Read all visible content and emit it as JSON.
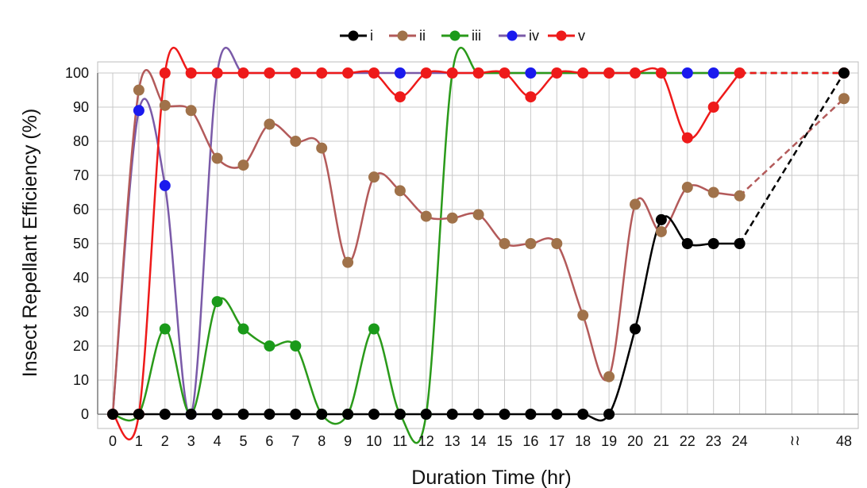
{
  "chart_data": {
    "type": "line",
    "title": "",
    "xlabel": "Duration Time (hr)",
    "ylabel": "Insect Repellant Efficiency (%)",
    "ylim": [
      0,
      100
    ],
    "yticks": [
      "0",
      "10",
      "20",
      "30",
      "40",
      "50",
      "60",
      "70",
      "80",
      "90",
      "100"
    ],
    "x": [
      "0",
      "1",
      "2",
      "3",
      "4",
      "5",
      "6",
      "7",
      "8",
      "9",
      "10",
      "11",
      "12",
      "13",
      "14",
      "15",
      "16",
      "17",
      "18",
      "19",
      "20",
      "21",
      "22",
      "23",
      "24",
      "48"
    ],
    "axis_break_symbol": "≀≀",
    "axis_break_between": [
      "24",
      "48"
    ],
    "grid": true,
    "legend_position": "top-center",
    "segment_24_to_48_style": "dashed",
    "series": [
      {
        "name": "i",
        "color": "#000000",
        "line_color": "#000000",
        "values": [
          0,
          0,
          0,
          0,
          0,
          0,
          0,
          0,
          0,
          0,
          0,
          0,
          0,
          0,
          0,
          0,
          0,
          0,
          0,
          0,
          25,
          57,
          50,
          50,
          50,
          100
        ]
      },
      {
        "name": "ii",
        "color": "#a0724a",
        "line_color": "#b35a5a",
        "values": [
          0,
          95,
          90.5,
          89,
          75,
          73,
          85,
          80,
          78,
          44.5,
          69.5,
          65.5,
          58,
          57.5,
          58.5,
          50,
          50,
          50,
          29,
          11,
          61.5,
          53.5,
          66.5,
          65,
          64,
          92.5
        ]
      },
      {
        "name": "iii",
        "color": "#1a9a1a",
        "line_color": "#2a9a1a",
        "values": [
          0,
          0,
          25,
          0,
          33,
          25,
          20,
          20,
          0,
          0,
          25,
          0,
          0,
          100,
          100,
          100,
          100,
          100,
          100,
          100,
          100,
          100,
          100,
          100,
          100,
          100
        ]
      },
      {
        "name": "iv",
        "color": "#1a1aee",
        "line_color": "#7a5aa8",
        "values": [
          0,
          89,
          67,
          0,
          100,
          100,
          100,
          100,
          100,
          100,
          100,
          100,
          100,
          100,
          100,
          100,
          100,
          100,
          100,
          100,
          100,
          100,
          100,
          100,
          100,
          100
        ]
      },
      {
        "name": "v",
        "color": "#ee1a1a",
        "line_color": "#ee1a1a",
        "values": [
          0,
          0,
          100,
          100,
          100,
          100,
          100,
          100,
          100,
          100,
          100,
          93,
          100,
          100,
          100,
          100,
          93,
          100,
          100,
          100,
          100,
          100,
          81,
          90,
          100,
          100
        ]
      }
    ],
    "drawn_markers": {
      "i": [
        0,
        1,
        2,
        3,
        4,
        5,
        6,
        7,
        8,
        9,
        10,
        11,
        12,
        13,
        14,
        15,
        16,
        17,
        18,
        19,
        20,
        21,
        22,
        23,
        24,
        25
      ],
      "ii": [
        1,
        2,
        3,
        4,
        5,
        6,
        7,
        8,
        9,
        10,
        11,
        12,
        13,
        14,
        15,
        16,
        17,
        18,
        19,
        20,
        21,
        22,
        23,
        24,
        25
      ],
      "iii": [
        2,
        4,
        5,
        6,
        7,
        8,
        9,
        10,
        11,
        12
      ],
      "iv": [
        1,
        2,
        3,
        11,
        16,
        22,
        23
      ],
      "v": [
        0,
        1,
        2,
        3,
        4,
        5,
        6,
        7,
        8,
        9,
        10,
        11,
        12,
        13,
        14,
        15,
        16,
        17,
        18,
        19,
        20,
        21,
        22,
        23,
        24,
        25
      ]
    }
  }
}
